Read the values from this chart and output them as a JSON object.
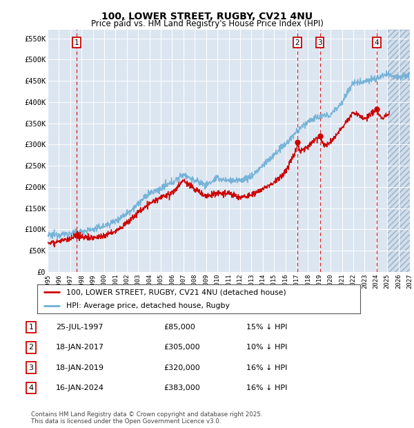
{
  "title": "100, LOWER STREET, RUGBY, CV21 4NU",
  "subtitle": "Price paid vs. HM Land Registry's House Price Index (HPI)",
  "ylabel_ticks": [
    "£0",
    "£50K",
    "£100K",
    "£150K",
    "£200K",
    "£250K",
    "£300K",
    "£350K",
    "£400K",
    "£450K",
    "£500K",
    "£550K"
  ],
  "ytick_values": [
    0,
    50000,
    100000,
    150000,
    200000,
    250000,
    300000,
    350000,
    400000,
    450000,
    500000,
    550000
  ],
  "xmin": 1995.0,
  "xmax": 2027.0,
  "ymin": 0,
  "ymax": 570000,
  "plot_bg": "#dce6f1",
  "hpi_color": "#6baed6",
  "price_color": "#cc0000",
  "vline_color": "#cc0000",
  "sale_points": [
    {
      "date_year": 1997.56,
      "price": 85000,
      "label": "1"
    },
    {
      "date_year": 2017.05,
      "price": 305000,
      "label": "2"
    },
    {
      "date_year": 2019.05,
      "price": 320000,
      "label": "3"
    },
    {
      "date_year": 2024.05,
      "price": 383000,
      "label": "4"
    }
  ],
  "legend_line1": "100, LOWER STREET, RUGBY, CV21 4NU (detached house)",
  "legend_line2": "HPI: Average price, detached house, Rugby",
  "table_rows": [
    {
      "num": "1",
      "date": "25-JUL-1997",
      "price": "£85,000",
      "pct": "15% ↓ HPI"
    },
    {
      "num": "2",
      "date": "18-JAN-2017",
      "price": "£305,000",
      "pct": "10% ↓ HPI"
    },
    {
      "num": "3",
      "date": "18-JAN-2019",
      "price": "£320,000",
      "pct": "16% ↓ HPI"
    },
    {
      "num": "4",
      "date": "16-JAN-2024",
      "price": "£383,000",
      "pct": "16% ↓ HPI"
    }
  ],
  "footnote": "Contains HM Land Registry data © Crown copyright and database right 2025.\nThis data is licensed under the Open Government Licence v3.0.",
  "future_xmin": 2025.0,
  "hpi_anchors": [
    [
      1995,
      85000
    ],
    [
      1996,
      88000
    ],
    [
      1997,
      90000
    ],
    [
      1998,
      95000
    ],
    [
      1999,
      100000
    ],
    [
      2000,
      108000
    ],
    [
      2001,
      120000
    ],
    [
      2002,
      138000
    ],
    [
      2003,
      160000
    ],
    [
      2004,
      185000
    ],
    [
      2005,
      195000
    ],
    [
      2006,
      210000
    ],
    [
      2007,
      230000
    ],
    [
      2008,
      215000
    ],
    [
      2009,
      205000
    ],
    [
      2010,
      220000
    ],
    [
      2011,
      215000
    ],
    [
      2012,
      215000
    ],
    [
      2013,
      225000
    ],
    [
      2014,
      250000
    ],
    [
      2015,
      275000
    ],
    [
      2016,
      300000
    ],
    [
      2017,
      330000
    ],
    [
      2018,
      355000
    ],
    [
      2019,
      365000
    ],
    [
      2020,
      370000
    ],
    [
      2021,
      400000
    ],
    [
      2022,
      445000
    ],
    [
      2023,
      450000
    ],
    [
      2024,
      455000
    ],
    [
      2025,
      465000
    ],
    [
      2026,
      460000
    ],
    [
      2027,
      465000
    ]
  ],
  "price_anchors": [
    [
      1995,
      68000
    ],
    [
      1996,
      72000
    ],
    [
      1997,
      76000
    ],
    [
      1997.56,
      85000
    ],
    [
      1998,
      83000
    ],
    [
      1999,
      80000
    ],
    [
      2000,
      85000
    ],
    [
      2001,
      95000
    ],
    [
      2002,
      115000
    ],
    [
      2003,
      140000
    ],
    [
      2004,
      160000
    ],
    [
      2005,
      175000
    ],
    [
      2006,
      185000
    ],
    [
      2007,
      215000
    ],
    [
      2008,
      195000
    ],
    [
      2009,
      178000
    ],
    [
      2010,
      185000
    ],
    [
      2011,
      185000
    ],
    [
      2012,
      175000
    ],
    [
      2013,
      180000
    ],
    [
      2014,
      195000
    ],
    [
      2015,
      210000
    ],
    [
      2016,
      235000
    ],
    [
      2017.0,
      290000
    ],
    [
      2017.05,
      305000
    ],
    [
      2017.3,
      285000
    ],
    [
      2018,
      295000
    ],
    [
      2018.5,
      310000
    ],
    [
      2019.05,
      320000
    ],
    [
      2019.3,
      305000
    ],
    [
      2019.5,
      298000
    ],
    [
      2020,
      305000
    ],
    [
      2021,
      340000
    ],
    [
      2022,
      375000
    ],
    [
      2023,
      360000
    ],
    [
      2024.05,
      383000
    ],
    [
      2024.3,
      370000
    ],
    [
      2024.5,
      360000
    ],
    [
      2025,
      370000
    ]
  ]
}
